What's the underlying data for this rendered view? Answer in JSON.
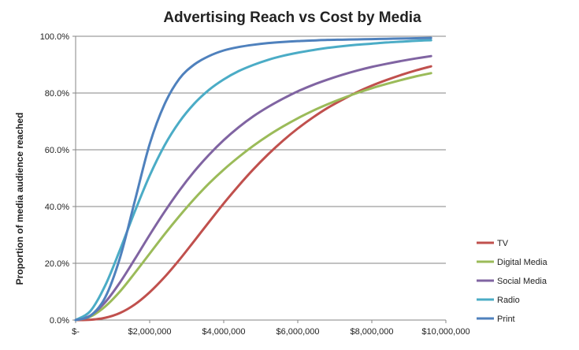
{
  "chart_data": {
    "type": "line",
    "title": "Advertising Reach vs Cost by Media",
    "xlabel": "",
    "ylabel": "Proportion of media audience reached",
    "x_ticks": [
      "$-",
      "$2,000,000",
      "$4,000,000",
      "$6,000,000",
      "$8,000,000",
      "$10,000,000"
    ],
    "y_ticks": [
      "0.0%",
      "20.0%",
      "40.0%",
      "60.0%",
      "80.0%",
      "100.0%"
    ],
    "xlim": [
      0,
      10000000
    ],
    "ylim": [
      0,
      1
    ],
    "grid": "horizontal",
    "legend_position": "right",
    "x": [
      0,
      400000,
      800000,
      1200000,
      1600000,
      2000000,
      2400000,
      2800000,
      3200000,
      3600000,
      4000000,
      4400000,
      4800000,
      5200000,
      5600000,
      6000000,
      6400000,
      6800000,
      7200000,
      7600000,
      8000000,
      8400000,
      8800000,
      9200000,
      9600000
    ],
    "series": [
      {
        "name": "TV",
        "color": "#C0504D",
        "values": [
          0.0,
          0.001,
          0.008,
          0.025,
          0.055,
          0.098,
          0.151,
          0.212,
          0.278,
          0.345,
          0.411,
          0.473,
          0.531,
          0.584,
          0.632,
          0.675,
          0.713,
          0.747,
          0.776,
          0.803,
          0.826,
          0.846,
          0.864,
          0.88,
          0.894
        ]
      },
      {
        "name": "Digital Media",
        "color": "#9BBB59",
        "values": [
          0.0,
          0.012,
          0.048,
          0.101,
          0.166,
          0.234,
          0.302,
          0.366,
          0.426,
          0.481,
          0.53,
          0.574,
          0.614,
          0.65,
          0.682,
          0.711,
          0.737,
          0.76,
          0.781,
          0.8,
          0.817,
          0.832,
          0.846,
          0.859,
          0.87
        ]
      },
      {
        "name": "Social Media",
        "color": "#8064A2",
        "values": [
          0.0,
          0.016,
          0.063,
          0.133,
          0.215,
          0.3,
          0.381,
          0.456,
          0.523,
          0.582,
          0.634,
          0.679,
          0.718,
          0.751,
          0.78,
          0.806,
          0.828,
          0.847,
          0.864,
          0.879,
          0.892,
          0.903,
          0.913,
          0.922,
          0.93
        ]
      },
      {
        "name": "Radio",
        "color": "#4BACC6",
        "values": [
          0.0,
          0.032,
          0.122,
          0.248,
          0.383,
          0.509,
          0.615,
          0.698,
          0.762,
          0.811,
          0.848,
          0.877,
          0.899,
          0.917,
          0.931,
          0.942,
          0.951,
          0.959,
          0.965,
          0.97,
          0.974,
          0.978,
          0.981,
          0.984,
          0.986
        ]
      },
      {
        "name": "Print",
        "color": "#4F81BD",
        "values": [
          0.0,
          0.015,
          0.08,
          0.22,
          0.42,
          0.62,
          0.76,
          0.85,
          0.9,
          0.93,
          0.95,
          0.962,
          0.97,
          0.976,
          0.98,
          0.983,
          0.985,
          0.987,
          0.988,
          0.989,
          0.99,
          0.991,
          0.992,
          0.993,
          0.994
        ]
      }
    ]
  }
}
